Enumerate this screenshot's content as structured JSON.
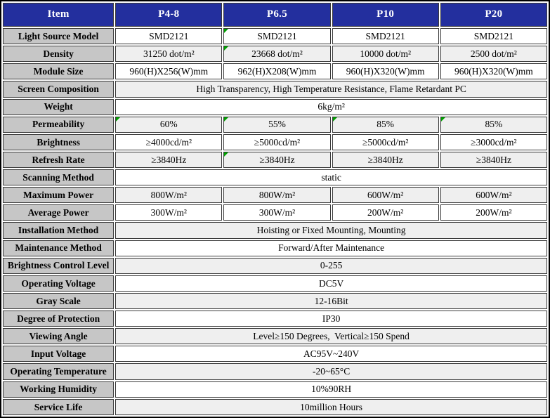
{
  "table": {
    "title": "LED display specification table",
    "colors": {
      "header_bg": "#232f9e",
      "header_text": "#ffffff",
      "label_bg": "#c6c6c6",
      "row_bg": "#ffffff",
      "alt_row_bg": "#efefef",
      "border": "#3a3a3a",
      "outer_border": "#000000",
      "flag_triangle": "#00a000"
    },
    "columns": [
      "Item",
      "P4-8",
      "P6.5",
      "P10",
      "P20"
    ],
    "rows": [
      {
        "label": "Light Source Model",
        "values": [
          "SMD2121",
          "SMD2121",
          "SMD2121",
          "SMD2121"
        ],
        "marks": [
          1
        ]
      },
      {
        "label": "Density",
        "values": [
          "31250 dot/m²",
          "23668 dot/m²",
          "10000 dot/m²",
          "2500 dot/m²"
        ],
        "marks": [
          1
        ]
      },
      {
        "label": "Module Size",
        "values": [
          "960(H)X256(W)mm",
          "962(H)X208(W)mm",
          "960(H)X320(W)mm",
          "960(H)X320(W)mm"
        ],
        "marks": []
      },
      {
        "label": "Screen Composition",
        "span": "High Transparency, High Temperature Resistance, Flame Retardant PC",
        "marks": []
      },
      {
        "label": "Weight",
        "span": "6kg/m²",
        "marks": []
      },
      {
        "label": "Permeability",
        "values": [
          "60%",
          "55%",
          "85%",
          "85%"
        ],
        "marks": [
          0,
          1,
          2,
          3
        ]
      },
      {
        "label": "Brightness",
        "values": [
          "≥4000cd/m²",
          "≥5000cd/m²",
          "≥5000cd/m²",
          "≥3000cd/m²"
        ],
        "marks": []
      },
      {
        "label": "Refresh Rate",
        "values": [
          "≥3840Hz",
          "≥3840Hz",
          "≥3840Hz",
          "≥3840Hz"
        ],
        "marks": [
          1
        ]
      },
      {
        "label": "Scanning Method",
        "span": "static",
        "marks": []
      },
      {
        "label": "Maximum Power",
        "values": [
          "800W/m²",
          "800W/m²",
          "600W/m²",
          "600W/m²"
        ],
        "marks": []
      },
      {
        "label": "Average Power",
        "values": [
          "300W/m²",
          "300W/m²",
          "200W/m²",
          "200W/m²"
        ],
        "marks": []
      },
      {
        "label": "Installation Method",
        "span": "Hoisting or Fixed Mounting, Mounting",
        "marks": []
      },
      {
        "label": "Maintenance Method",
        "span": "Forward/After Maintenance",
        "marks": []
      },
      {
        "label": "Brightness Control Level",
        "span": "0-255",
        "marks": []
      },
      {
        "label": "Operating Voltage",
        "span": "DC5V",
        "marks": []
      },
      {
        "label": "Gray Scale",
        "span": "12-16Bit",
        "marks": []
      },
      {
        "label": "Degree of Protection",
        "span": "IP30",
        "marks": []
      },
      {
        "label": "Viewing Angle",
        "span": "Level≥150 Degrees,  Vertical≥150 Spend",
        "marks": []
      },
      {
        "label": "Input Voltage",
        "span": "AC95V~240V",
        "marks": []
      },
      {
        "label": "Operating Temperature",
        "span": "-20~65°C",
        "marks": []
      },
      {
        "label": "Working Humidity",
        "span": "10%90RH",
        "marks": []
      },
      {
        "label": "Service Life",
        "span": "10million Hours",
        "marks": []
      }
    ]
  }
}
